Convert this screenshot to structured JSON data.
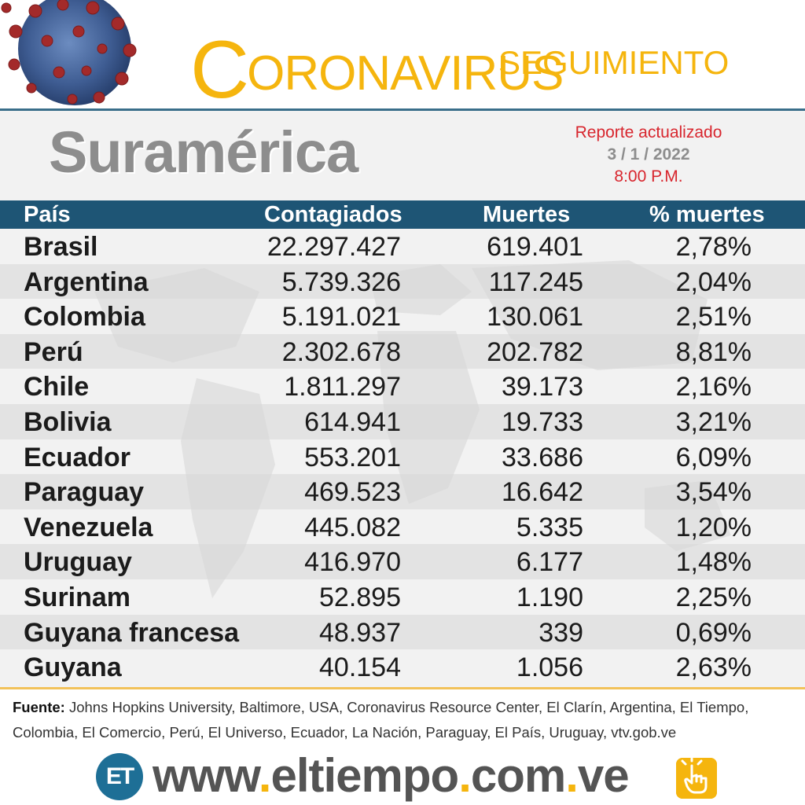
{
  "header": {
    "title_initial": "C",
    "title_rest": "ORONAVIRUS",
    "title_sub": "SEGUIMIENTO"
  },
  "region_title": "Suramérica",
  "report": {
    "line1": "Reporte actualizado",
    "date": "3 / 1 / 2022",
    "time": "8:00 P.M."
  },
  "table": {
    "columns": [
      "País",
      "Contagiados",
      "Muertes",
      "% muertes"
    ],
    "rows": [
      {
        "country": "Brasil",
        "cases": "22.297.427",
        "deaths": "619.401",
        "pct": "2,78%"
      },
      {
        "country": "Argentina",
        "cases": "5.739.326",
        "deaths": "117.245",
        "pct": "2,04%"
      },
      {
        "country": "Colombia",
        "cases": "5.191.021",
        "deaths": "130.061",
        "pct": "2,51%"
      },
      {
        "country": "Perú",
        "cases": "2.302.678",
        "deaths": "202.782",
        "pct": "8,81%"
      },
      {
        "country": "Chile",
        "cases": "1.811.297",
        "deaths": "39.173",
        "pct": "2,16%"
      },
      {
        "country": "Bolivia",
        "cases": "614.941",
        "deaths": "19.733",
        "pct": "3,21%"
      },
      {
        "country": "Ecuador",
        "cases": "553.201",
        "deaths": "33.686",
        "pct": "6,09%"
      },
      {
        "country": "Paraguay",
        "cases": "469.523",
        "deaths": "16.642",
        "pct": "3,54%"
      },
      {
        "country": "Venezuela",
        "cases": "445.082",
        "deaths": "5.335",
        "pct": "1,20%"
      },
      {
        "country": "Uruguay",
        "cases": "416.970",
        "deaths": "6.177",
        "pct": "1,48%"
      },
      {
        "country": "Surinam",
        "cases": "52.895",
        "deaths": "1.190",
        "pct": "2,25%"
      },
      {
        "country": "Guyana francesa",
        "cases": "48.937",
        "deaths": "339",
        "pct": "0,69%"
      },
      {
        "country": "Guyana",
        "cases": "40.154",
        "deaths": "1.056",
        "pct": "2,63%"
      }
    ]
  },
  "source": {
    "label": "Fuente:",
    "text": " Johns Hopkins University, Baltimore, USA, Coronavirus Resource Center,  El Clarín, Argentina, El Tiempo, Colombia, El Comercio, Perú, El Universo, Ecuador, La Nación, Paraguay, El País, Uruguay, vtv.gob.ve"
  },
  "site": {
    "logo_text": "ET",
    "url_parts": [
      "www",
      ".",
      "eltiempo",
      ".",
      "com",
      ".",
      "ve"
    ]
  },
  "colors": {
    "title_yellow": "#f5b50e",
    "header_blue": "#1e5575",
    "report_red": "#d8262e",
    "region_gray": "#8d8d8d"
  },
  "icons": [
    "coronavirus-icon",
    "world-map-background",
    "et-logo",
    "hand-pointer-icon"
  ]
}
